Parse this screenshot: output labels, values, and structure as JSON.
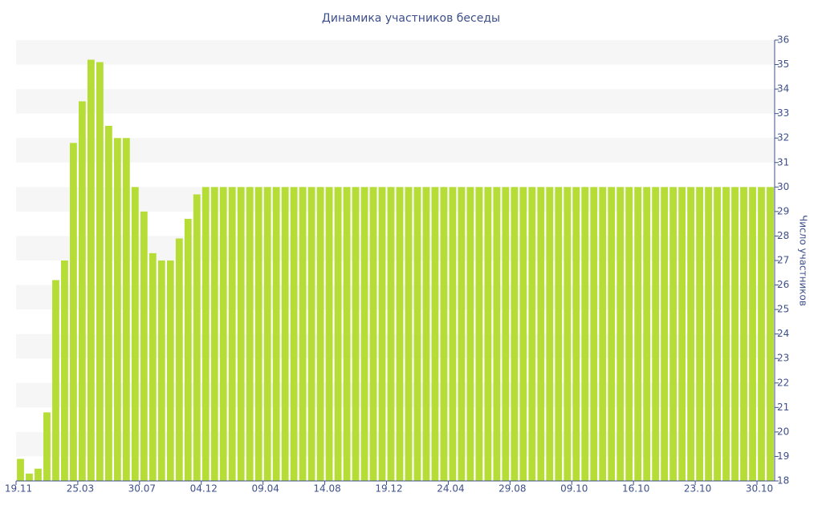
{
  "chart_data": {
    "type": "bar",
    "title": "Динамика участников беседы",
    "y_axis_label": "Число участников",
    "categories": [
      "19.11",
      null,
      null,
      null,
      null,
      null,
      null,
      "25.03",
      null,
      null,
      null,
      null,
      null,
      null,
      "30.07",
      null,
      null,
      null,
      null,
      null,
      null,
      "04.12",
      null,
      null,
      null,
      null,
      null,
      null,
      "09.04",
      null,
      null,
      null,
      null,
      null,
      null,
      "14.08",
      null,
      null,
      null,
      null,
      null,
      null,
      "19.12",
      null,
      null,
      null,
      null,
      null,
      null,
      "24.04",
      null,
      null,
      null,
      null,
      null,
      null,
      "29.08",
      null,
      null,
      null,
      null,
      null,
      null,
      "09.10",
      null,
      null,
      null,
      null,
      null,
      null,
      "16.10",
      null,
      null,
      null,
      null,
      null,
      null,
      "23.10",
      null,
      null,
      null,
      null,
      null,
      null,
      "30.10",
      null
    ],
    "values": [
      18.9,
      18.3,
      18.5,
      20.8,
      26.2,
      27,
      31.8,
      33.5,
      35.2,
      35.1,
      32.5,
      32,
      32,
      30,
      29,
      27.3,
      27,
      27,
      27.9,
      28.7,
      29.7,
      30,
      30,
      30,
      30,
      30,
      30,
      30,
      30,
      30,
      30,
      30,
      30,
      30,
      30,
      30,
      30,
      30,
      30,
      30,
      30,
      30,
      30,
      30,
      30,
      30,
      30,
      30,
      30,
      30,
      30,
      30,
      30,
      30,
      30,
      30,
      30,
      30,
      30,
      30,
      30,
      30,
      30,
      30,
      30,
      30,
      30,
      30,
      30,
      30,
      30,
      30,
      30,
      30,
      30,
      30,
      30,
      30,
      30,
      30,
      30,
      30,
      30,
      30,
      30,
      30
    ],
    "color": "#b5dd35",
    "ylim": [
      18,
      36
    ],
    "yticks": [
      18,
      19,
      20,
      21,
      22,
      23,
      24,
      25,
      26,
      27,
      28,
      29,
      30,
      31,
      32,
      33,
      34,
      35,
      36
    ],
    "grid": true
  }
}
